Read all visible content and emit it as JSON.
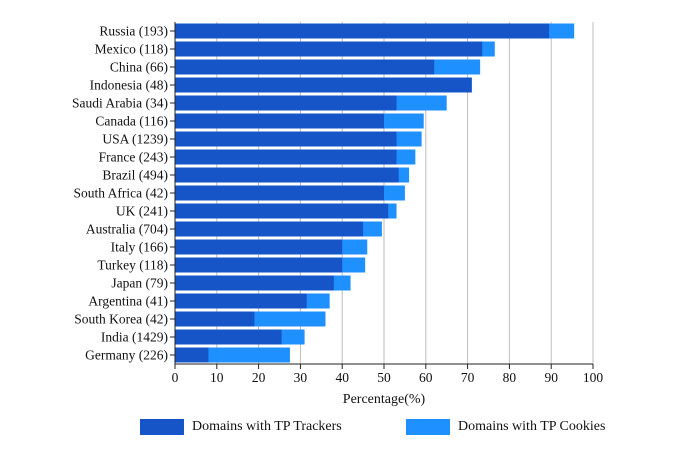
{
  "chart_data": {
    "type": "bar",
    "orientation": "horizontal",
    "stacked": false,
    "categories": [
      "Russia (193)",
      "Mexico (118)",
      "China (66)",
      "Indonesia (48)",
      "Saudi Arabia (34)",
      "Canada (116)",
      "USA (1239)",
      "France (243)",
      "Brazil (494)",
      "South Africa (42)",
      "UK (241)",
      "Australia (704)",
      "Italy (166)",
      "Turkey (118)",
      "Japan (79)",
      "Argentina (41)",
      "South Korea (42)",
      "India (1429)",
      "Germany (226)"
    ],
    "series": [
      {
        "name": "Domains with TP Cookies",
        "color": "#1e90ff",
        "values": [
          95.5,
          76.5,
          73,
          71,
          65,
          59.5,
          59,
          57.5,
          56,
          55,
          53,
          49.5,
          46,
          45.5,
          42,
          37,
          36,
          31,
          27.5
        ]
      },
      {
        "name": "Domains with TP Trackers",
        "color": "#1655c8",
        "values": [
          89.5,
          73.5,
          62,
          71,
          53,
          50,
          53,
          53,
          53.5,
          50,
          51,
          45,
          40,
          40,
          38,
          31.5,
          19,
          25.5,
          8
        ]
      }
    ],
    "xlabel": "Percentage(%)",
    "ylabel": "",
    "xlim": [
      0,
      100
    ],
    "xticks": [
      "0",
      "10",
      "20",
      "30",
      "40",
      "50",
      "60",
      "70",
      "80",
      "90",
      "100"
    ],
    "grid": "vertical",
    "legend_position": "bottom"
  },
  "legend": {
    "trackers_label": "Domains with TP Trackers",
    "cookies_label": "Domains with TP Cookies",
    "trackers_color": "#1655c8",
    "cookies_color": "#1e90ff"
  }
}
